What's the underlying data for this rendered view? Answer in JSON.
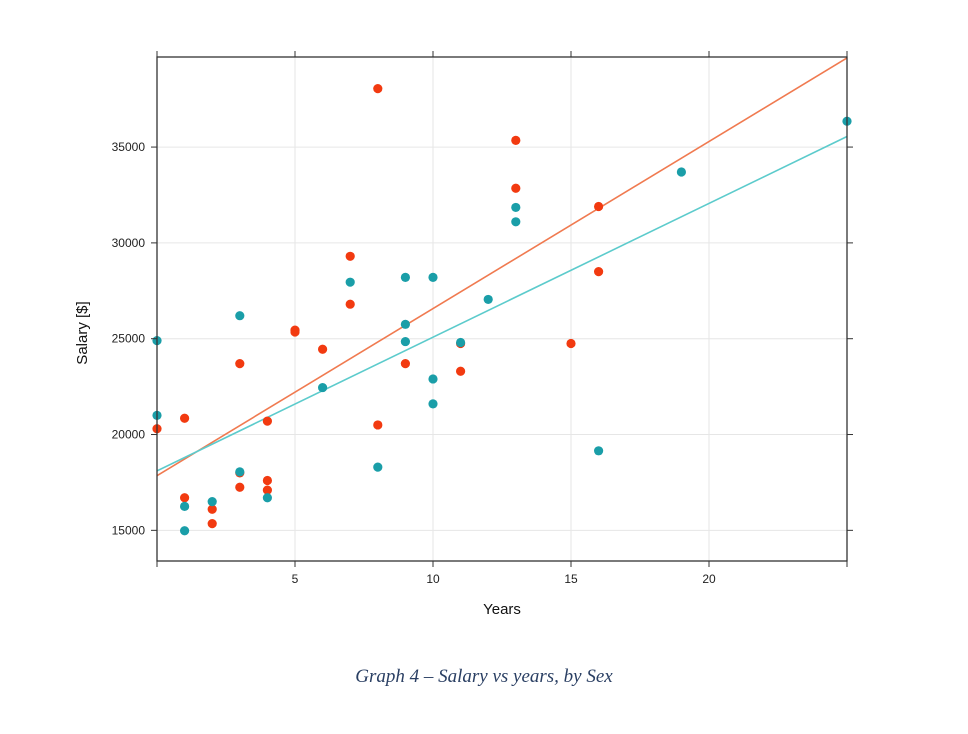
{
  "caption": "Graph 4 – Salary vs years, by Sex",
  "colors": {
    "female": "#f23a10",
    "male": "#1a9ea8",
    "female_line": "#f07a50",
    "male_line": "#5ccbcc",
    "grid": "#e6e6e6",
    "axis": "#333333"
  },
  "chart_data": {
    "type": "scatter",
    "xlabel": "Years",
    "ylabel": "Salary [$]",
    "xlim": [
      0,
      25
    ],
    "ylim": [
      13400,
      39700
    ],
    "xticks": [
      5,
      10,
      15,
      20
    ],
    "yticks": [
      15000,
      20000,
      25000,
      30000,
      35000
    ],
    "xtick_labels": [
      "5",
      "10",
      "15",
      "20"
    ],
    "ytick_labels": [
      "15000",
      "20000",
      "25000",
      "30000",
      "35000"
    ],
    "grid": true,
    "series": [
      {
        "color": "#f23a10",
        "points": [
          [
            0,
            20300
          ],
          [
            1,
            20850
          ],
          [
            1,
            16700
          ],
          [
            2,
            16100
          ],
          [
            2,
            15350
          ],
          [
            3,
            23700
          ],
          [
            3,
            18000
          ],
          [
            3,
            17250
          ],
          [
            4,
            20700
          ],
          [
            4,
            17600
          ],
          [
            4,
            17100
          ],
          [
            5,
            25450
          ],
          [
            5,
            25350
          ],
          [
            6,
            24450
          ],
          [
            7,
            29300
          ],
          [
            7,
            26800
          ],
          [
            8,
            38050
          ],
          [
            8,
            20500
          ],
          [
            9,
            23700
          ],
          [
            11,
            24750
          ],
          [
            11,
            23300
          ],
          [
            13,
            35350
          ],
          [
            13,
            32850
          ],
          [
            15,
            24750
          ],
          [
            16,
            31900
          ],
          [
            16,
            28500
          ]
        ],
        "fit": [
          [
            0,
            17850
          ],
          [
            25,
            39650
          ]
        ]
      },
      {
        "color": "#1a9ea8",
        "points": [
          [
            0,
            24900
          ],
          [
            0,
            21000
          ],
          [
            1,
            16250
          ],
          [
            1,
            14980
          ],
          [
            2,
            16500
          ],
          [
            3,
            26200
          ],
          [
            3,
            18050
          ],
          [
            4,
            16700
          ],
          [
            6,
            22450
          ],
          [
            7,
            27950
          ],
          [
            8,
            18300
          ],
          [
            9,
            28200
          ],
          [
            9,
            25750
          ],
          [
            9,
            24850
          ],
          [
            10,
            28200
          ],
          [
            10,
            22900
          ],
          [
            10,
            21600
          ],
          [
            11,
            24800
          ],
          [
            12,
            27050
          ],
          [
            13,
            31850
          ],
          [
            13,
            31100
          ],
          [
            16,
            19150
          ],
          [
            19,
            33700
          ],
          [
            25,
            36350
          ]
        ],
        "fit": [
          [
            0,
            18100
          ],
          [
            25,
            35550
          ]
        ]
      }
    ]
  }
}
